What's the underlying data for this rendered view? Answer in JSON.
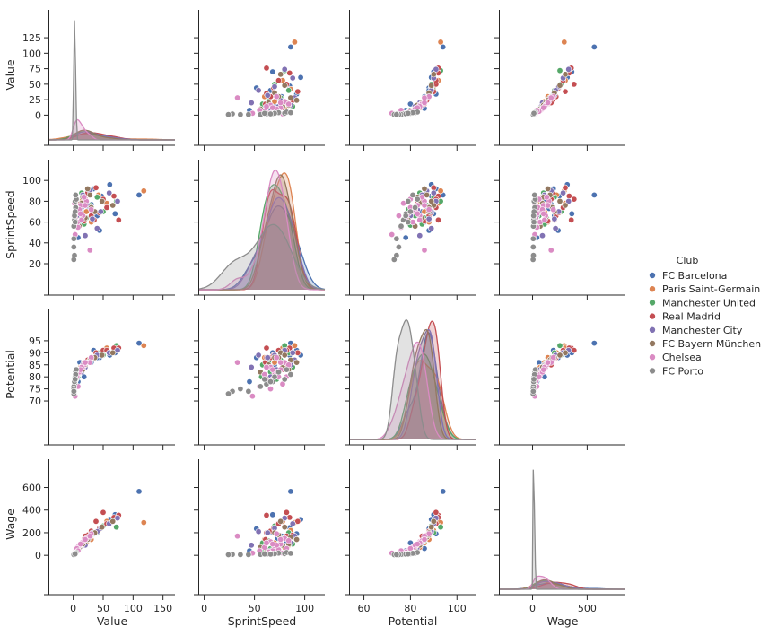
{
  "chart_data": {
    "type": "scatter",
    "layout": "pairplot",
    "variables": [
      "Value",
      "SprintSpeed",
      "Potential",
      "Wage"
    ],
    "axes": {
      "Value": {
        "label": "Value",
        "range": [
          -40,
          170
        ],
        "ticks": [
          0,
          25,
          50,
          75,
          100,
          125
        ],
        "xticks": [
          0,
          50,
          100,
          150
        ]
      },
      "SprintSpeed": {
        "label": "SprintSpeed",
        "range": [
          -5,
          120
        ],
        "ticks": [
          20,
          40,
          60,
          80,
          100
        ],
        "xticks": [
          0,
          50,
          100
        ]
      },
      "Potential": {
        "label": "Potential",
        "range": [
          54,
          108
        ],
        "ticks": [
          70,
          75,
          80,
          85,
          90,
          95
        ],
        "xticks": [
          60,
          80,
          100
        ]
      },
      "Wage": {
        "label": "Wage",
        "range": [
          -300,
          850
        ],
        "ticks": [
          0,
          200,
          400,
          600
        ],
        "xticks": [
          0,
          500
        ]
      }
    },
    "legend": {
      "title": "Club",
      "placement": "center-right",
      "entries": [
        {
          "name": "FC Barcelona",
          "color": "#4c72b0"
        },
        {
          "name": "Paris Saint-Germain",
          "color": "#dd8452"
        },
        {
          "name": "Manchester United",
          "color": "#55a868"
        },
        {
          "name": "Real Madrid",
          "color": "#c44e52"
        },
        {
          "name": "Manchester City",
          "color": "#8172b3"
        },
        {
          "name": "FC Bayern München",
          "color": "#937860"
        },
        {
          "name": "Chelsea",
          "color": "#da8bc3"
        },
        {
          "name": "FC Porto",
          "color": "#8c8c8c"
        }
      ]
    },
    "series": [
      {
        "club": "FC Barcelona",
        "points": [
          [
            110,
            86,
            94,
            565
          ],
          [
            61,
            96,
            89,
            318
          ],
          [
            47,
            85,
            89,
            245
          ],
          [
            70,
            68,
            90,
            360
          ],
          [
            34,
            92,
            91,
            190
          ],
          [
            26,
            73,
            87,
            150
          ],
          [
            14,
            70,
            85,
            80
          ],
          [
            11,
            60,
            86,
            60
          ],
          [
            6,
            72,
            83,
            40
          ],
          [
            44,
            52,
            88,
            235
          ],
          [
            30,
            77,
            86,
            170
          ],
          [
            18,
            82,
            80,
            110
          ],
          [
            40,
            66,
            88,
            200
          ],
          [
            8,
            45,
            78,
            40
          ]
        ]
      },
      {
        "club": "Paris Saint-Germain",
        "points": [
          [
            118,
            90,
            93,
            290
          ],
          [
            56,
            78,
            92,
            300
          ],
          [
            42,
            86,
            90,
            220
          ],
          [
            22,
            70,
            86,
            110
          ],
          [
            12,
            80,
            84,
            70
          ],
          [
            6,
            66,
            80,
            30
          ],
          [
            30,
            60,
            88,
            140
          ],
          [
            16,
            84,
            83,
            90
          ],
          [
            9,
            74,
            82,
            50
          ]
        ]
      },
      {
        "club": "Manchester United",
        "points": [
          [
            72,
            80,
            93,
            250
          ],
          [
            40,
            84,
            90,
            200
          ],
          [
            28,
            76,
            87,
            160
          ],
          [
            18,
            58,
            85,
            110
          ],
          [
            10,
            66,
            82,
            60
          ],
          [
            5,
            72,
            79,
            30
          ],
          [
            50,
            70,
            89,
            260
          ],
          [
            14,
            88,
            84,
            100
          ],
          [
            22,
            64,
            86,
            130
          ],
          [
            8,
            57,
            80,
            40
          ]
        ]
      },
      {
        "club": "Real Madrid",
        "points": [
          [
            76,
            62,
            92,
            355
          ],
          [
            68,
            85,
            92,
            335
          ],
          [
            50,
            82,
            91,
            380
          ],
          [
            38,
            93,
            90,
            300
          ],
          [
            30,
            66,
            88,
            215
          ],
          [
            24,
            88,
            87,
            180
          ],
          [
            18,
            61,
            86,
            140
          ],
          [
            12,
            78,
            83,
            90
          ],
          [
            8,
            70,
            81,
            60
          ],
          [
            44,
            69,
            89,
            240
          ],
          [
            20,
            82,
            85,
            170
          ],
          [
            56,
            74,
            91,
            280
          ],
          [
            35,
            62,
            88,
            200
          ]
        ]
      },
      {
        "club": "Manchester City",
        "points": [
          [
            74,
            80,
            91,
            330
          ],
          [
            60,
            88,
            90,
            280
          ],
          [
            46,
            70,
            89,
            240
          ],
          [
            32,
            63,
            88,
            200
          ],
          [
            24,
            76,
            86,
            150
          ],
          [
            16,
            86,
            85,
            110
          ],
          [
            10,
            72,
            83,
            70
          ],
          [
            6,
            66,
            80,
            40
          ],
          [
            20,
            47,
            84,
            90
          ],
          [
            28,
            90,
            87,
            170
          ],
          [
            40,
            54,
            89,
            210
          ],
          [
            14,
            74,
            82,
            80
          ]
        ]
      },
      {
        "club": "FC Bayern München",
        "points": [
          [
            66,
            76,
            90,
            300
          ],
          [
            48,
            80,
            89,
            250
          ],
          [
            36,
            70,
            88,
            200
          ],
          [
            28,
            86,
            87,
            160
          ],
          [
            20,
            64,
            85,
            120
          ],
          [
            14,
            78,
            84,
            90
          ],
          [
            8,
            72,
            81,
            60
          ],
          [
            4,
            62,
            79,
            30
          ],
          [
            24,
            92,
            86,
            140
          ],
          [
            10,
            56,
            82,
            70
          ],
          [
            30,
            74,
            88,
            180
          ],
          [
            16,
            84,
            83,
            100
          ]
        ]
      },
      {
        "club": "Chelsea",
        "points": [
          [
            30,
            72,
            88,
            190
          ],
          [
            22,
            80,
            86,
            150
          ],
          [
            16,
            66,
            84,
            120
          ],
          [
            12,
            76,
            83,
            100
          ],
          [
            9,
            70,
            82,
            80
          ],
          [
            7,
            60,
            81,
            70
          ],
          [
            5,
            74,
            80,
            50
          ],
          [
            4,
            68,
            79,
            40
          ],
          [
            3,
            64,
            78,
            30
          ],
          [
            2,
            78,
            77,
            20
          ],
          [
            18,
            84,
            85,
            130
          ],
          [
            14,
            62,
            84,
            110
          ],
          [
            10,
            72,
            82,
            90
          ],
          [
            6,
            82,
            80,
            60
          ],
          [
            28,
            33,
            86,
            170
          ],
          [
            3,
            48,
            72,
            20
          ],
          [
            8,
            55,
            76,
            40
          ],
          [
            12,
            68,
            83,
            100
          ],
          [
            20,
            76,
            86,
            140
          ],
          [
            1,
            66,
            75,
            15
          ]
        ]
      },
      {
        "club": "FC Porto",
        "points": [
          [
            4,
            74,
            82,
            20
          ],
          [
            3,
            80,
            79,
            15
          ],
          [
            2,
            68,
            78,
            12
          ],
          [
            2,
            62,
            77,
            10
          ],
          [
            1,
            56,
            76,
            8
          ],
          [
            1,
            36,
            75,
            6
          ],
          [
            2,
            28,
            74,
            8
          ],
          [
            1,
            24,
            73,
            5
          ],
          [
            3,
            70,
            80,
            14
          ],
          [
            5,
            82,
            83,
            25
          ],
          [
            2,
            66,
            78,
            10
          ],
          [
            4,
            86,
            81,
            18
          ],
          [
            1,
            44,
            74,
            6
          ],
          [
            3,
            60,
            79,
            12
          ]
        ]
      }
    ]
  }
}
